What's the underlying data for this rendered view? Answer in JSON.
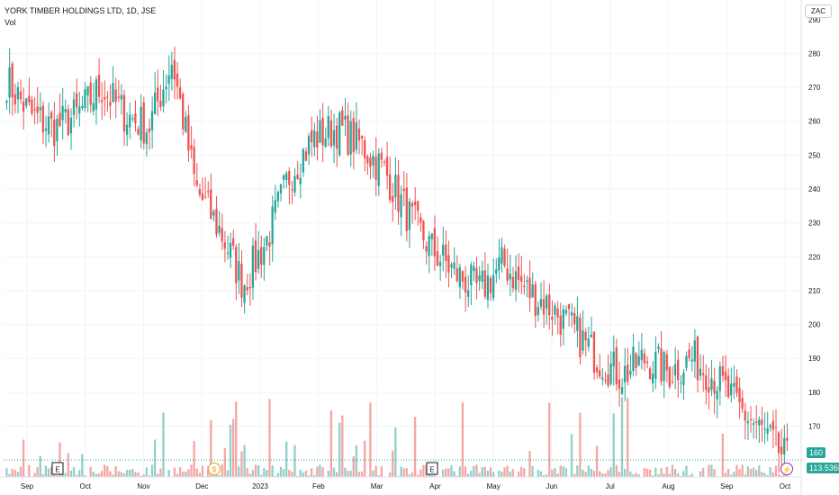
{
  "header": {
    "title": "YORK TIMBER HOLDINGS LTD, 1D, JSE",
    "volume_label": "Vol"
  },
  "currency_button": "ZAC",
  "colors": {
    "up": "#26a69a",
    "down": "#ef5350",
    "up_vol": "#8fd1c9",
    "down_vol": "#f5a6a4",
    "grid": "#f0f3fa",
    "axis_text": "#131722",
    "price_badge": "#26a69a",
    "volume_badge": "#26a69a",
    "dividend_marker": "#e8a517",
    "split_marker": "#9c27b0"
  },
  "chart_data": {
    "type": "candlestick",
    "y_ticks": [
      170,
      180,
      190,
      200,
      210,
      220,
      230,
      240,
      250,
      260,
      270,
      280
    ],
    "y_top_partial_tick": "290",
    "ylim": [
      155,
      291
    ],
    "x_labels": [
      "Sep",
      "Oct",
      "Nov",
      "Dec",
      "2023",
      "Feb",
      "Mar",
      "Apr",
      "May",
      "Jun",
      "Jul",
      "Aug",
      "Sep",
      "Oct"
    ],
    "last_price_label": "160",
    "last_volume_label": "113.536K",
    "event_markers": [
      {
        "type": "earnings",
        "label": "E",
        "date": "Oct"
      },
      {
        "type": "dividend",
        "label": "$",
        "date": "Dec"
      },
      {
        "type": "earnings",
        "label": "E",
        "date": "Apr"
      },
      {
        "type": "split",
        "label": "⚡",
        "date": "Oct"
      }
    ],
    "waypoints": [
      {
        "date": "Sep",
        "close": 272
      },
      {
        "date": "Sep",
        "close": 262
      },
      {
        "date": "Oct",
        "close": 258
      },
      {
        "date": "Oct",
        "close": 262
      },
      {
        "date": "Nov",
        "close": 270
      },
      {
        "date": "Nov",
        "close": 262
      },
      {
        "date": "Nov",
        "close": 258
      },
      {
        "date": "Dec",
        "close": 278
      },
      {
        "date": "Dec",
        "close": 240
      },
      {
        "date": "Dec",
        "close": 228
      },
      {
        "date": "Dec",
        "close": 212
      },
      {
        "date": "2023",
        "close": 225
      },
      {
        "date": "2023",
        "close": 245
      },
      {
        "date": "2023",
        "close": 255
      },
      {
        "date": "Feb",
        "close": 258
      },
      {
        "date": "Feb",
        "close": 253
      },
      {
        "date": "Feb",
        "close": 245
      },
      {
        "date": "Mar",
        "close": 232
      },
      {
        "date": "Mar",
        "close": 222
      },
      {
        "date": "Apr",
        "close": 215
      },
      {
        "date": "Apr",
        "close": 210
      },
      {
        "date": "Apr",
        "close": 218
      },
      {
        "date": "May",
        "close": 210
      },
      {
        "date": "May",
        "close": 205
      },
      {
        "date": "Jun",
        "close": 198
      },
      {
        "date": "Jun",
        "close": 190
      },
      {
        "date": "Jul",
        "close": 185
      },
      {
        "date": "Jul",
        "close": 190
      },
      {
        "date": "Aug",
        "close": 186
      },
      {
        "date": "Aug",
        "close": 190
      },
      {
        "date": "Sep",
        "close": 184
      },
      {
        "date": "Sep",
        "close": 175
      },
      {
        "date": "Sep",
        "close": 168
      },
      {
        "date": "Oct",
        "close": 160
      }
    ]
  }
}
